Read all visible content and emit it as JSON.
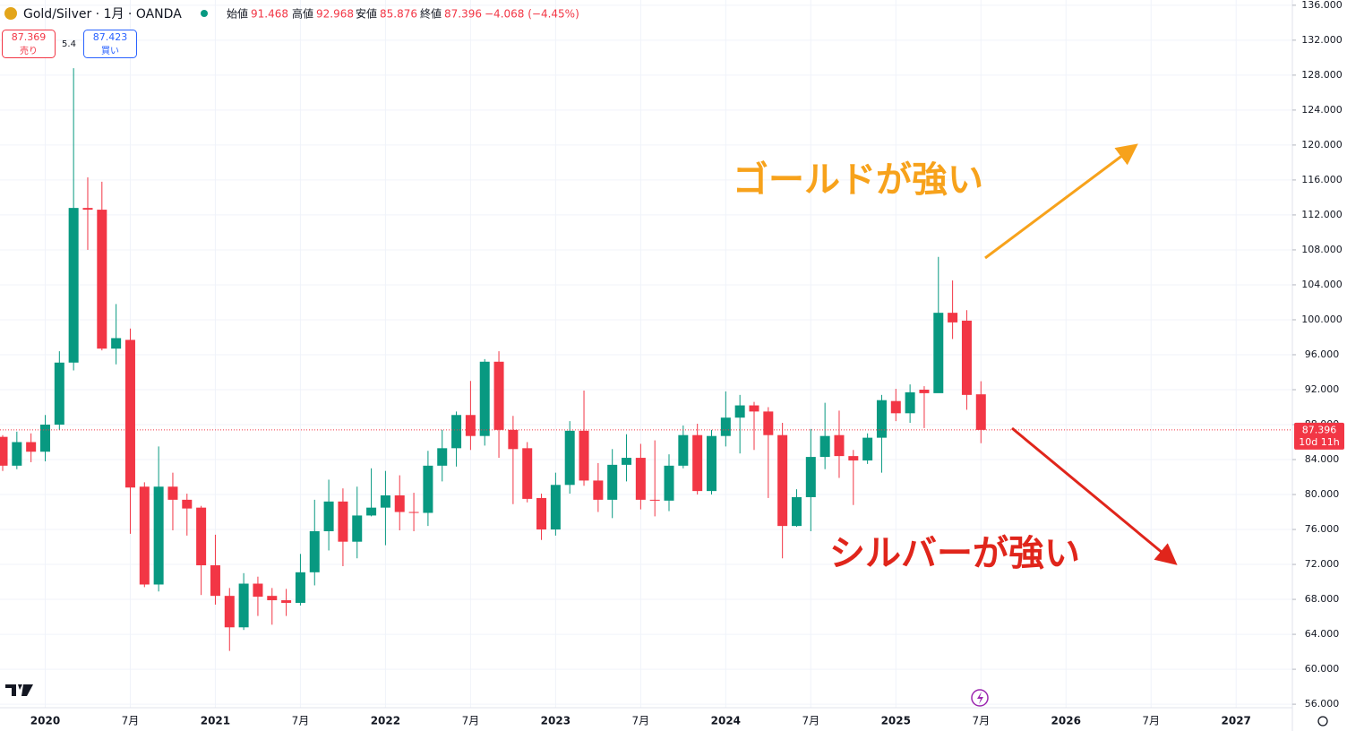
{
  "header": {
    "symbol": "Gold/Silver · 1月 · OANDA",
    "open_label": "始値",
    "high_label": "高値",
    "low_label": "安値",
    "close_label": "終値",
    "change": "−4.068 (−4.45%)",
    "sell_price": "87.369",
    "sell_label": "売り",
    "spread": "5.4",
    "buy_price": "87.423",
    "buy_label": "買い",
    "countdown": "10d 11h"
  },
  "chart_data": {
    "type": "candlestick",
    "up_color": "#089981",
    "down_color": "#f23645",
    "grid": true,
    "categories": [
      null,
      null,
      null,
      "2020",
      null,
      null,
      null,
      null,
      null,
      "7月",
      null,
      null,
      null,
      null,
      null,
      "2021",
      null,
      null,
      null,
      null,
      null,
      "7月",
      null,
      null,
      null,
      null,
      null,
      "2022",
      null,
      null,
      null,
      null,
      null,
      "7月",
      null,
      null,
      null,
      null,
      null,
      "2023",
      null,
      null,
      null,
      null,
      null,
      "7月",
      null,
      null,
      null,
      null,
      null,
      "2024",
      null,
      null,
      null,
      null,
      null,
      "7月",
      null,
      null,
      null,
      null,
      null,
      "2025",
      null,
      null,
      null,
      null,
      null,
      "7月",
      null,
      null,
      null,
      null,
      null,
      "2026",
      null,
      null,
      null,
      null,
      null,
      "7月",
      null,
      null,
      null,
      null,
      null,
      "2027",
      null,
      null,
      null
    ],
    "open": [
      86.6,
      83.3,
      86.0,
      84.9,
      88.0,
      95.1,
      112.8,
      112.6,
      96.7,
      97.7,
      80.9,
      69.7,
      80.9,
      79.4,
      78.5,
      71.9,
      68.4,
      64.8,
      69.8,
      68.4,
      67.9,
      67.6,
      71.1,
      75.8,
      79.2,
      74.6,
      77.6,
      78.5,
      79.9,
      78.0,
      77.9,
      83.3,
      85.3,
      89.1,
      86.7,
      95.2,
      87.4,
      85.3,
      79.6,
      76.0,
      81.1,
      87.3,
      81.6,
      79.4,
      83.4,
      84.2,
      79.4,
      79.3,
      83.3,
      86.8,
      80.4,
      86.7,
      88.8,
      90.2,
      89.5,
      86.8,
      76.4,
      79.7,
      84.3,
      86.8,
      84.4,
      83.9,
      86.5,
      90.7,
      89.3,
      92.0,
      91.6,
      100.8,
      99.9,
      91.468,
      null,
      null,
      null,
      null,
      null,
      null,
      null,
      null,
      null,
      null,
      null,
      null,
      null,
      null,
      null,
      null,
      null,
      null,
      null,
      null,
      null
    ],
    "high": [
      86.8,
      87.2,
      87.0,
      89.1,
      96.4,
      128.8,
      116.3,
      115.8,
      101.8,
      99.0,
      81.4,
      85.5,
      82.5,
      80.1,
      78.7,
      75.4,
      69.3,
      71.0,
      70.6,
      69.3,
      69.2,
      73.2,
      79.4,
      81.7,
      80.7,
      80.9,
      83.0,
      82.7,
      82.2,
      80.2,
      85.0,
      87.4,
      89.5,
      93.0,
      95.5,
      96.4,
      89.0,
      86.0,
      80.1,
      82.5,
      88.4,
      91.9,
      83.6,
      85.2,
      86.9,
      85.8,
      86.2,
      84.6,
      87.9,
      88.1,
      87.4,
      91.8,
      91.4,
      90.6,
      90.0,
      88.2,
      80.6,
      87.5,
      90.5,
      89.6,
      85.1,
      87.0,
      91.4,
      92.1,
      92.6,
      92.4,
      107.2,
      104.5,
      101.1,
      92.968,
      null,
      null,
      null,
      null,
      null,
      null,
      null,
      null,
      null,
      null,
      null,
      null,
      null,
      null,
      null,
      null,
      null,
      null,
      null,
      null,
      null
    ],
    "low": [
      82.7,
      82.9,
      83.7,
      83.8,
      87.4,
      94.2,
      108.0,
      96.5,
      94.9,
      75.5,
      69.4,
      68.9,
      75.9,
      75.3,
      68.5,
      67.4,
      62.1,
      64.5,
      66.1,
      65.1,
      66.1,
      67.3,
      69.6,
      73.6,
      71.8,
      72.7,
      77.5,
      74.2,
      75.9,
      75.8,
      76.4,
      81.5,
      83.2,
      85.1,
      85.6,
      84.2,
      78.9,
      79.1,
      74.8,
      75.3,
      80.1,
      81.0,
      78.0,
      77.3,
      81.5,
      78.3,
      77.5,
      78.1,
      83.0,
      80.0,
      80.0,
      85.5,
      84.7,
      85.1,
      79.6,
      72.7,
      76.3,
      75.8,
      82.9,
      81.9,
      78.8,
      83.5,
      82.5,
      88.4,
      88.2,
      87.6,
      91.7,
      97.8,
      89.7,
      85.876,
      null,
      null,
      null,
      null,
      null,
      null,
      null,
      null,
      null,
      null,
      null,
      null,
      null,
      null,
      null,
      null,
      null,
      null,
      null,
      null,
      null
    ],
    "close": [
      83.3,
      86.0,
      84.9,
      88.0,
      95.1,
      112.8,
      112.6,
      96.7,
      97.9,
      80.8,
      69.7,
      80.9,
      79.4,
      78.4,
      71.9,
      68.4,
      64.8,
      69.8,
      68.3,
      67.9,
      67.6,
      71.1,
      75.8,
      79.2,
      74.6,
      77.6,
      78.5,
      79.9,
      78.0,
      77.9,
      83.3,
      85.3,
      89.1,
      86.7,
      95.2,
      87.4,
      85.2,
      79.5,
      76.0,
      81.1,
      87.3,
      81.6,
      79.4,
      83.4,
      84.2,
      79.4,
      79.3,
      83.3,
      86.8,
      80.4,
      86.7,
      88.8,
      90.2,
      89.5,
      86.8,
      76.4,
      79.7,
      84.3,
      86.7,
      84.4,
      83.9,
      86.5,
      90.8,
      89.3,
      91.7,
      91.6,
      100.8,
      99.7,
      91.4,
      87.396,
      null,
      null,
      null,
      null,
      null,
      null,
      null,
      null,
      null,
      null,
      null,
      null,
      null,
      null,
      null,
      null,
      null,
      null,
      null,
      null,
      null
    ],
    "ylim": [
      55.6,
      136.6
    ],
    "yticks": [
      {
        "value": 56,
        "label": "56.000"
      },
      {
        "value": 60,
        "label": "60.000"
      },
      {
        "value": 64,
        "label": "64.000"
      },
      {
        "value": 68,
        "label": "68.000"
      },
      {
        "value": 72,
        "label": "72.000"
      },
      {
        "value": 76,
        "label": "76.000"
      },
      {
        "value": 80,
        "label": "80.000"
      },
      {
        "value": 84,
        "label": "84.000"
      },
      {
        "value": 88,
        "label": "88.000"
      },
      {
        "value": 92,
        "label": "92.000"
      },
      {
        "value": 96,
        "label": "96.000"
      },
      {
        "value": 100,
        "label": "100.000"
      },
      {
        "value": 104,
        "label": "104.000"
      },
      {
        "value": 108,
        "label": "108.000"
      },
      {
        "value": 112,
        "label": "112.000"
      },
      {
        "value": 116,
        "label": "116.000"
      },
      {
        "value": 120,
        "label": "120.000"
      },
      {
        "value": 124,
        "label": "124.000"
      },
      {
        "value": 128,
        "label": "128.000"
      },
      {
        "value": 132,
        "label": "132.000"
      },
      {
        "value": 136,
        "label": "136.000"
      }
    ],
    "annotations": [
      {
        "text": "ゴールドが強い",
        "color": "#f7a21b"
      },
      {
        "text": "シルバーが強い",
        "color": "#e0251b"
      }
    ]
  }
}
